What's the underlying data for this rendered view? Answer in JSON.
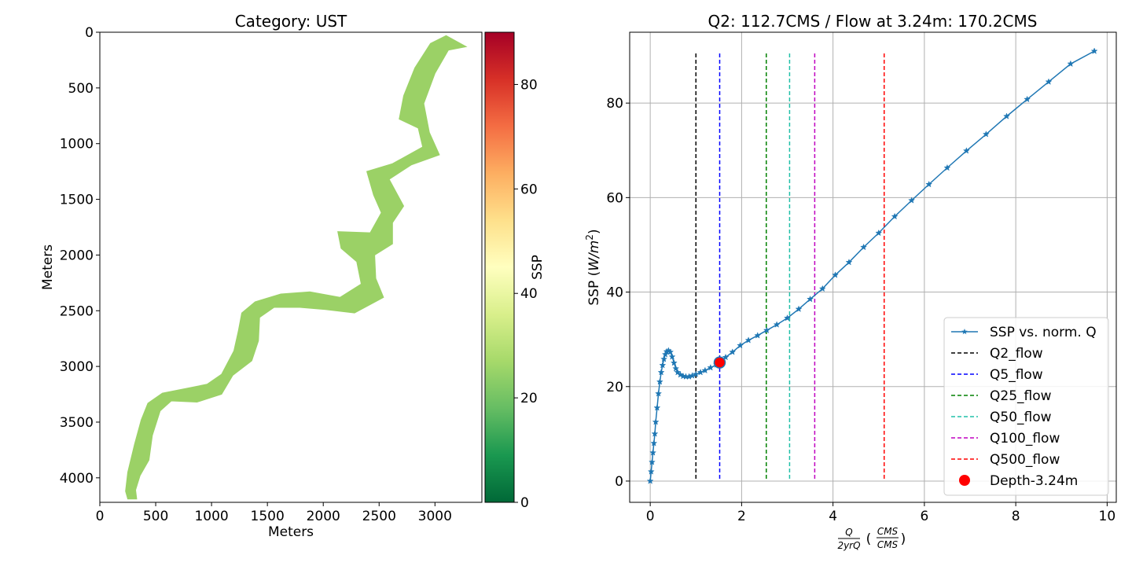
{
  "colors": {
    "extent_fill": "#9bd166",
    "series_line": "#1f77b4",
    "marker_dot": "#ff0000",
    "grid": "#b0b0b0",
    "colorbar_stops": [
      "#006837",
      "#1a9850",
      "#66bd63",
      "#a6d96a",
      "#d9ef8b",
      "#ffffbf",
      "#fee08b",
      "#fdae61",
      "#f46d43",
      "#d73027",
      "#a50026"
    ]
  },
  "chart_data": [
    {
      "type": "heatmap",
      "title": "Category: UST",
      "xlabel": "Meters",
      "ylabel": "Meters",
      "xlim": [
        0,
        3420
      ],
      "ylim": [
        4220,
        0
      ],
      "xticks": [
        "0",
        "500",
        "1000",
        "1500",
        "2000",
        "2500",
        "3000"
      ],
      "yticks": [
        "0",
        "500",
        "1000",
        "1500",
        "2000",
        "2500",
        "3000",
        "3500",
        "4000"
      ],
      "colorbar": {
        "label": "SSP",
        "range": [
          0,
          90
        ],
        "ticks": [
          "0",
          "20",
          "40",
          "60",
          "80"
        ],
        "colormap": "RdYlGn_r"
      },
      "uniform_value": 22,
      "extent_outline_m": [
        [
          250,
          4190
        ],
        [
          230,
          4120
        ],
        [
          250,
          3950
        ],
        [
          310,
          3700
        ],
        [
          370,
          3480
        ],
        [
          430,
          3330
        ],
        [
          560,
          3240
        ],
        [
          760,
          3200
        ],
        [
          960,
          3160
        ],
        [
          1090,
          3070
        ],
        [
          1200,
          2860
        ],
        [
          1240,
          2680
        ],
        [
          1270,
          2520
        ],
        [
          1390,
          2420
        ],
        [
          1620,
          2350
        ],
        [
          1880,
          2330
        ],
        [
          2150,
          2380
        ],
        [
          2340,
          2260
        ],
        [
          2300,
          2060
        ],
        [
          2160,
          1940
        ],
        [
          2130,
          1790
        ],
        [
          2420,
          1800
        ],
        [
          2520,
          1620
        ],
        [
          2450,
          1460
        ],
        [
          2390,
          1250
        ],
        [
          2620,
          1180
        ],
        [
          2890,
          1030
        ],
        [
          2850,
          860
        ],
        [
          2680,
          780
        ],
        [
          2720,
          570
        ],
        [
          2820,
          320
        ],
        [
          2960,
          100
        ],
        [
          3100,
          30
        ],
        [
          3280,
          130
        ],
        [
          3120,
          160
        ],
        [
          3000,
          370
        ],
        [
          2900,
          640
        ],
        [
          2950,
          900
        ],
        [
          3040,
          1100
        ],
        [
          2790,
          1190
        ],
        [
          2590,
          1320
        ],
        [
          2720,
          1560
        ],
        [
          2620,
          1710
        ],
        [
          2620,
          1900
        ],
        [
          2460,
          2000
        ],
        [
          2470,
          2210
        ],
        [
          2540,
          2380
        ],
        [
          2280,
          2520
        ],
        [
          2020,
          2490
        ],
        [
          1790,
          2470
        ],
        [
          1560,
          2470
        ],
        [
          1430,
          2560
        ],
        [
          1420,
          2770
        ],
        [
          1360,
          2950
        ],
        [
          1190,
          3080
        ],
        [
          1090,
          3250
        ],
        [
          870,
          3320
        ],
        [
          640,
          3310
        ],
        [
          540,
          3400
        ],
        [
          470,
          3620
        ],
        [
          440,
          3840
        ],
        [
          360,
          3980
        ],
        [
          320,
          4110
        ],
        [
          330,
          4190
        ]
      ]
    },
    {
      "type": "line",
      "title": "Q2: 112.7CMS / Flow at 3.24m: 170.2CMS",
      "xlabel": "Q/2yrQ (CMS/CMS)",
      "xlabel_parts": {
        "num": "Q",
        "den": "2yrQ",
        "unit_num": "CMS",
        "unit_den": "CMS"
      },
      "ylabel": "SSP (W/m²)",
      "ylabel_parts": {
        "main": "SSP (",
        "unit": "W/m",
        "sup": "2",
        "close": ")"
      },
      "xlim": [
        -0.45,
        10.2
      ],
      "ylim": [
        -4.5,
        95
      ],
      "xticks": [
        0,
        2,
        4,
        6,
        8,
        10
      ],
      "yticks": [
        0,
        20,
        40,
        60,
        80
      ],
      "grid": true,
      "legend_position": "lower right",
      "series": [
        {
          "name": "SSP vs. norm. Q",
          "marker": "star",
          "x": [
            0.0,
            0.02,
            0.04,
            0.06,
            0.08,
            0.1,
            0.12,
            0.15,
            0.18,
            0.21,
            0.24,
            0.27,
            0.3,
            0.33,
            0.36,
            0.4,
            0.44,
            0.48,
            0.52,
            0.56,
            0.6,
            0.66,
            0.72,
            0.78,
            0.85,
            0.92,
            1.0,
            1.1,
            1.2,
            1.32,
            1.45,
            1.52,
            1.65,
            1.8,
            1.97,
            2.15,
            2.35,
            2.55,
            2.77,
            3.0,
            3.25,
            3.5,
            3.77,
            4.05,
            4.35,
            4.67,
            5.0,
            5.35,
            5.72,
            6.1,
            6.5,
            6.92,
            7.35,
            7.8,
            8.25,
            8.72,
            9.2,
            9.72
          ],
          "y": [
            0.0,
            2.0,
            4.0,
            6.0,
            8.0,
            10.0,
            12.5,
            15.5,
            18.5,
            21.0,
            23.0,
            24.5,
            25.8,
            26.8,
            27.4,
            27.6,
            27.3,
            26.3,
            25.0,
            23.8,
            23.0,
            22.5,
            22.2,
            22.1,
            22.1,
            22.3,
            22.6,
            23.0,
            23.4,
            24.0,
            24.6,
            25.1,
            26.2,
            27.3,
            28.7,
            29.8,
            30.8,
            31.9,
            33.1,
            34.5,
            36.4,
            38.5,
            40.7,
            43.6,
            46.3,
            49.5,
            52.5,
            56.0,
            59.4,
            62.8,
            66.3,
            69.9,
            73.4,
            77.2,
            80.8,
            84.5,
            88.3,
            91.0
          ]
        }
      ],
      "vlines": [
        {
          "name": "Q2_flow",
          "x": 1.0,
          "color": "#000000"
        },
        {
          "name": "Q5_flow",
          "x": 1.52,
          "color": "#0000ff"
        },
        {
          "name": "Q25_flow",
          "x": 2.54,
          "color": "#008000"
        },
        {
          "name": "Q50_flow",
          "x": 3.05,
          "color": "#20c0a8"
        },
        {
          "name": "Q100_flow",
          "x": 3.6,
          "color": "#c000c0"
        },
        {
          "name": "Q500_flow",
          "x": 5.12,
          "color": "#ff0000"
        }
      ],
      "vline_top": 90.5,
      "point": {
        "name": "Depth-3.24m",
        "x": 1.52,
        "y": 25.1
      }
    }
  ]
}
